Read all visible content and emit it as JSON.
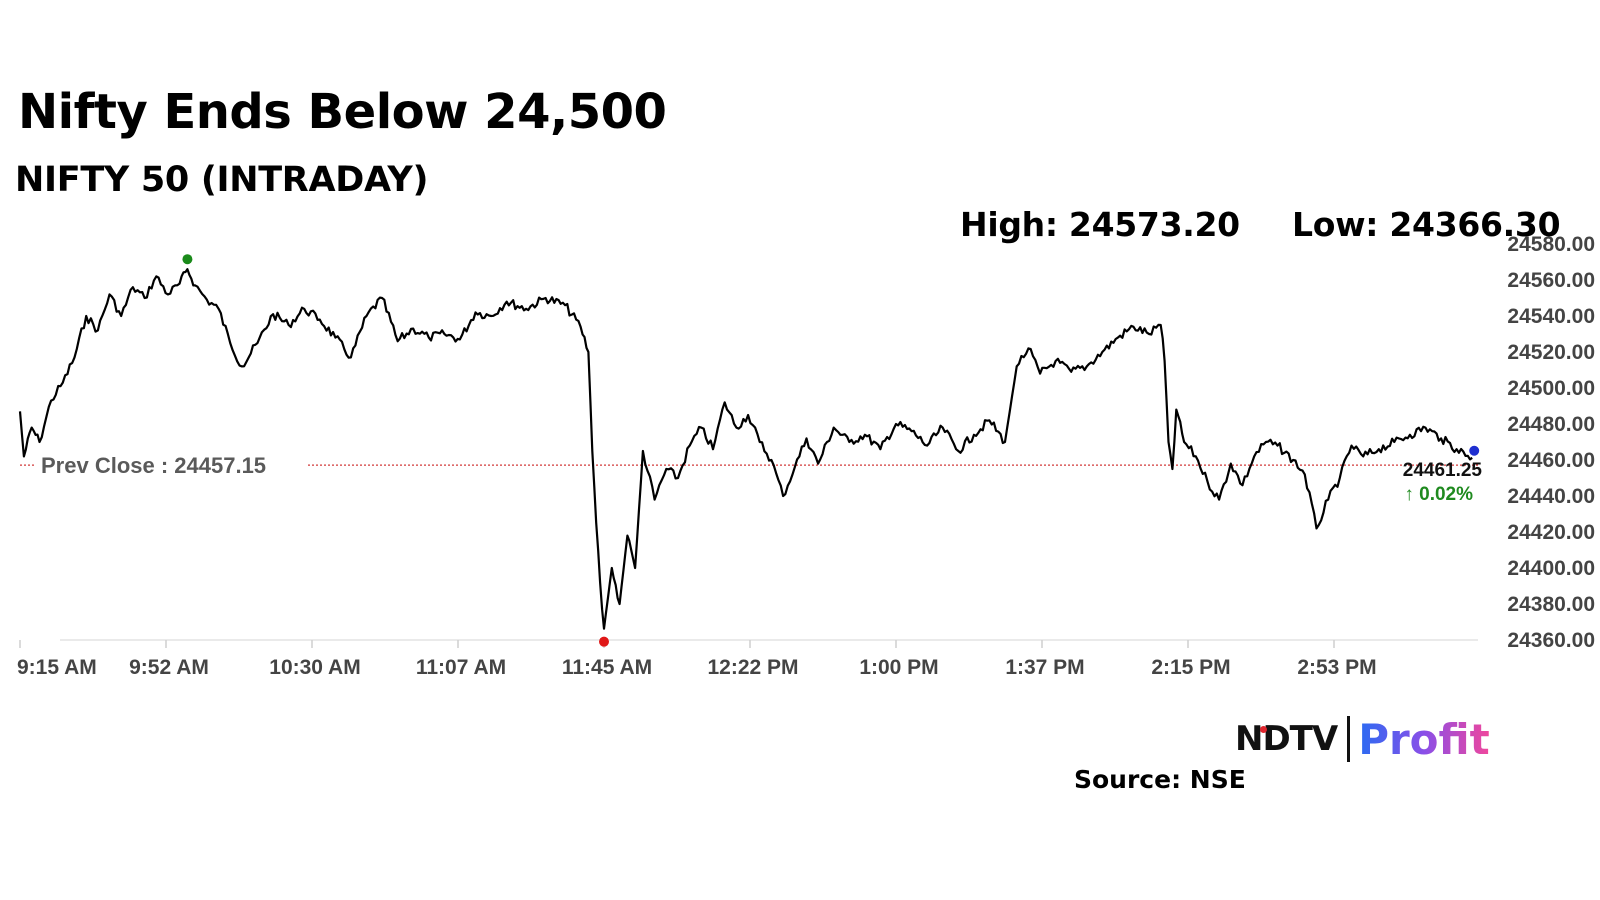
{
  "header": {
    "title": "Nifty Ends Below 24,500",
    "subtitle": "NIFTY 50 (INTRADAY)",
    "high_label": "High: 24573.20",
    "low_label": "Low: 24366.30"
  },
  "footer": {
    "brand_ndtv": "NDTV",
    "brand_profit": "Profit",
    "source": "Source: NSE"
  },
  "colors": {
    "line": "#000000",
    "prev_close": "#d23a3a",
    "high_marker": "#1a8a1a",
    "low_marker": "#e01818",
    "last_marker": "#1f2fd0",
    "change_up": "#1f8a1f"
  },
  "chart_data": {
    "type": "line",
    "x_ticks": [
      "9:15 AM",
      "9:52 AM",
      "10:30 AM",
      "11:07 AM",
      "11:45 AM",
      "12:22 PM",
      "1:00 PM",
      "1:37 PM",
      "2:15 PM",
      "2:53 PM"
    ],
    "y_ticks": [
      "24580.00",
      "24560.00",
      "24540.00",
      "24520.00",
      "24500.00",
      "24480.00",
      "24460.00",
      "24440.00",
      "24420.00",
      "24400.00",
      "24380.00",
      "24360.00"
    ],
    "ylim": [
      24360,
      24580
    ],
    "prev_close_label": "Prev Close : 24457.15",
    "prev_close": 24457.15,
    "high": 24573.2,
    "low": 24366.3,
    "last_value_label": "24461.25",
    "last_change_label": "↑ 0.02%",
    "series": [
      {
        "points": [
          [
            "9:15",
            24487
          ],
          [
            "9:16",
            24462
          ],
          [
            "9:18",
            24478
          ],
          [
            "9:20",
            24470
          ],
          [
            "9:23",
            24493
          ],
          [
            "9:26",
            24503
          ],
          [
            "9:29",
            24517
          ],
          [
            "9:32",
            24540
          ],
          [
            "9:35",
            24532
          ],
          [
            "9:38",
            24552
          ],
          [
            "9:41",
            24540
          ],
          [
            "9:44",
            24556
          ],
          [
            "9:47",
            24550
          ],
          [
            "9:50",
            24562
          ],
          [
            "9:53",
            24552
          ],
          [
            "9:56",
            24558
          ],
          [
            "9:58",
            24566
          ],
          [
            "10:00",
            24557
          ],
          [
            "10:03",
            24549
          ],
          [
            "10:06",
            24544
          ],
          [
            "10:09",
            24525
          ],
          [
            "10:12",
            24512
          ],
          [
            "10:16",
            24525
          ],
          [
            "10:20",
            24541
          ],
          [
            "10:24",
            24535
          ],
          [
            "10:28",
            24544
          ],
          [
            "10:32",
            24538
          ],
          [
            "10:36",
            24528
          ],
          [
            "10:40",
            24517
          ],
          [
            "10:44",
            24540
          ],
          [
            "10:48",
            24550
          ],
          [
            "10:52",
            24526
          ],
          [
            "10:56",
            24533
          ],
          [
            "11:00",
            24528
          ],
          [
            "11:04",
            24530
          ],
          [
            "11:08",
            24527
          ],
          [
            "11:12",
            24542
          ],
          [
            "11:16",
            24540
          ],
          [
            "11:20",
            24548
          ],
          [
            "11:25",
            24544
          ],
          [
            "11:30",
            24550
          ],
          [
            "11:35",
            24546
          ],
          [
            "11:39",
            24534
          ],
          [
            "11:41",
            24520
          ],
          [
            "11:42",
            24465
          ],
          [
            "11:43",
            24425
          ],
          [
            "11:44",
            24392
          ],
          [
            "11:45",
            24366.3
          ],
          [
            "11:47",
            24400
          ],
          [
            "11:49",
            24380
          ],
          [
            "11:51",
            24418
          ],
          [
            "11:53",
            24400
          ],
          [
            "11:55",
            24465
          ],
          [
            "11:58",
            24438
          ],
          [
            "12:01",
            24455
          ],
          [
            "12:04",
            24450
          ],
          [
            "12:07",
            24468
          ],
          [
            "12:10",
            24478
          ],
          [
            "12:13",
            24466
          ],
          [
            "12:16",
            24492
          ],
          [
            "12:19",
            24478
          ],
          [
            "12:22",
            24485
          ],
          [
            "12:25",
            24470
          ],
          [
            "12:28",
            24460
          ],
          [
            "12:31",
            24440
          ],
          [
            "12:34",
            24456
          ],
          [
            "12:37",
            24472
          ],
          [
            "12:40",
            24458
          ],
          [
            "12:44",
            24478
          ],
          [
            "12:48",
            24470
          ],
          [
            "12:52",
            24474
          ],
          [
            "12:56",
            24466
          ],
          [
            "1:00",
            24480
          ],
          [
            "1:04",
            24476
          ],
          [
            "1:08",
            24468
          ],
          [
            "1:12",
            24478
          ],
          [
            "1:16",
            24465
          ],
          [
            "1:20",
            24474
          ],
          [
            "1:24",
            24482
          ],
          [
            "1:28",
            24470
          ],
          [
            "1:31",
            24512
          ],
          [
            "1:34",
            24522
          ],
          [
            "1:37",
            24508
          ],
          [
            "1:41",
            24515
          ],
          [
            "1:45",
            24509
          ],
          [
            "1:49",
            24512
          ],
          [
            "1:53",
            24520
          ],
          [
            "1:57",
            24528
          ],
          [
            "2:01",
            24534
          ],
          [
            "2:05",
            24530
          ],
          [
            "2:08",
            24535
          ],
          [
            "2:09",
            24515
          ],
          [
            "2:10",
            24470
          ],
          [
            "2:11",
            24455
          ],
          [
            "2:12",
            24488
          ],
          [
            "2:14",
            24470
          ],
          [
            "2:17",
            24462
          ],
          [
            "2:20",
            24448
          ],
          [
            "2:23",
            24438
          ],
          [
            "2:26",
            24458
          ],
          [
            "2:29",
            24446
          ],
          [
            "2:32",
            24462
          ],
          [
            "2:35",
            24470
          ],
          [
            "2:38",
            24468
          ],
          [
            "2:42",
            24460
          ],
          [
            "2:45",
            24452
          ],
          [
            "2:48",
            24422
          ],
          [
            "2:51",
            24438
          ],
          [
            "2:54",
            24450
          ],
          [
            "2:57",
            24468
          ],
          [
            "3:00",
            24462
          ],
          [
            "3:04",
            24466
          ],
          [
            "3:08",
            24470
          ],
          [
            "3:12",
            24474
          ],
          [
            "3:16",
            24478
          ],
          [
            "3:20",
            24472
          ],
          [
            "3:24",
            24466
          ],
          [
            "3:28",
            24461.25
          ]
        ]
      }
    ]
  }
}
